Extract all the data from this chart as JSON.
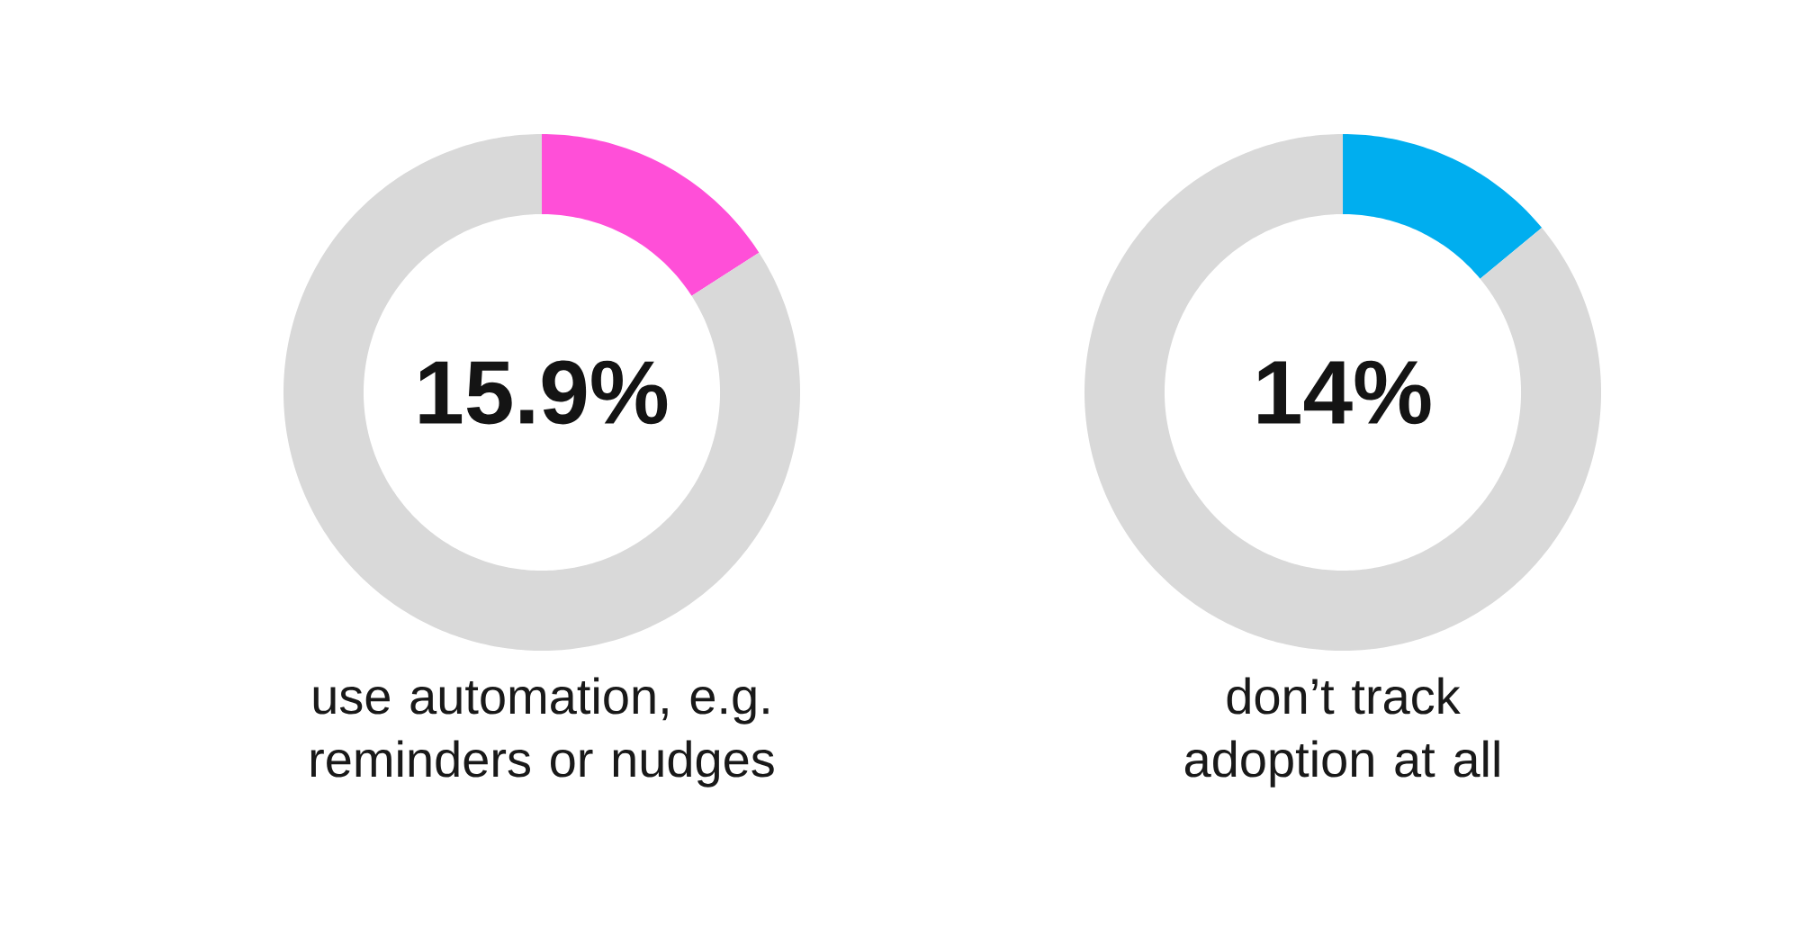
{
  "chart_data": [
    {
      "type": "donut",
      "title": "use automation, e.g. reminders or nudges",
      "categories": [
        null,
        null
      ],
      "values": [
        15.9,
        84.1
      ],
      "colors": [
        "#ff4fd8",
        "#d9d9d9"
      ],
      "annotations": [
        "15.9%"
      ]
    },
    {
      "type": "donut",
      "title": "don’t track adoption at all",
      "categories": [
        null,
        null
      ],
      "values": [
        14,
        86
      ],
      "colors": [
        "#00aeef",
        "#d9d9d9"
      ],
      "annotations": [
        "14%"
      ]
    }
  ]
}
